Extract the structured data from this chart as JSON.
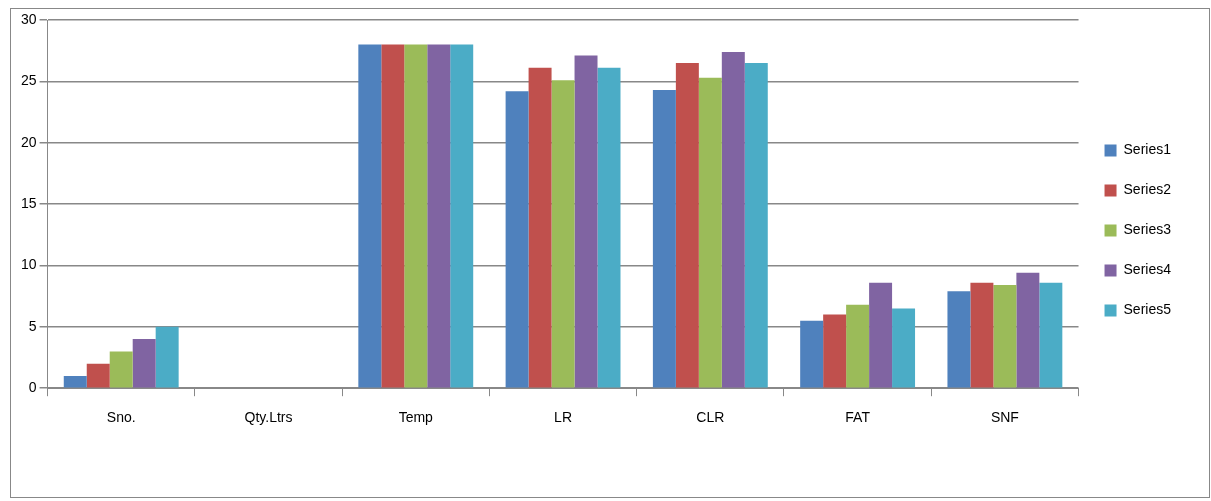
{
  "chart_data": {
    "type": "bar",
    "categories": [
      "Sno.",
      "Qty.Ltrs",
      "Temp",
      "LR",
      "CLR",
      "FAT",
      "SNF"
    ],
    "series": [
      {
        "name": "Series1",
        "color": "#4f81bd",
        "values": [
          1,
          0,
          28,
          24.2,
          24.3,
          5.5,
          7.9
        ]
      },
      {
        "name": "Series2",
        "color": "#c0504d",
        "values": [
          2,
          0,
          28,
          26.1,
          26.5,
          6.0,
          8.6
        ]
      },
      {
        "name": "Series3",
        "color": "#9bbb59",
        "values": [
          3,
          0,
          28,
          25.1,
          25.3,
          6.8,
          8.4
        ]
      },
      {
        "name": "Series4",
        "color": "#8064a2",
        "values": [
          4,
          0,
          28,
          27.1,
          27.4,
          8.6,
          9.4
        ]
      },
      {
        "name": "Series5",
        "color": "#4bacc6",
        "values": [
          5,
          0,
          28,
          26.1,
          26.5,
          6.5,
          8.6
        ]
      }
    ],
    "ylim": [
      0,
      30
    ],
    "yticks": [
      0,
      5,
      10,
      15,
      20,
      25,
      30
    ],
    "grid": "y",
    "legend": "right"
  }
}
